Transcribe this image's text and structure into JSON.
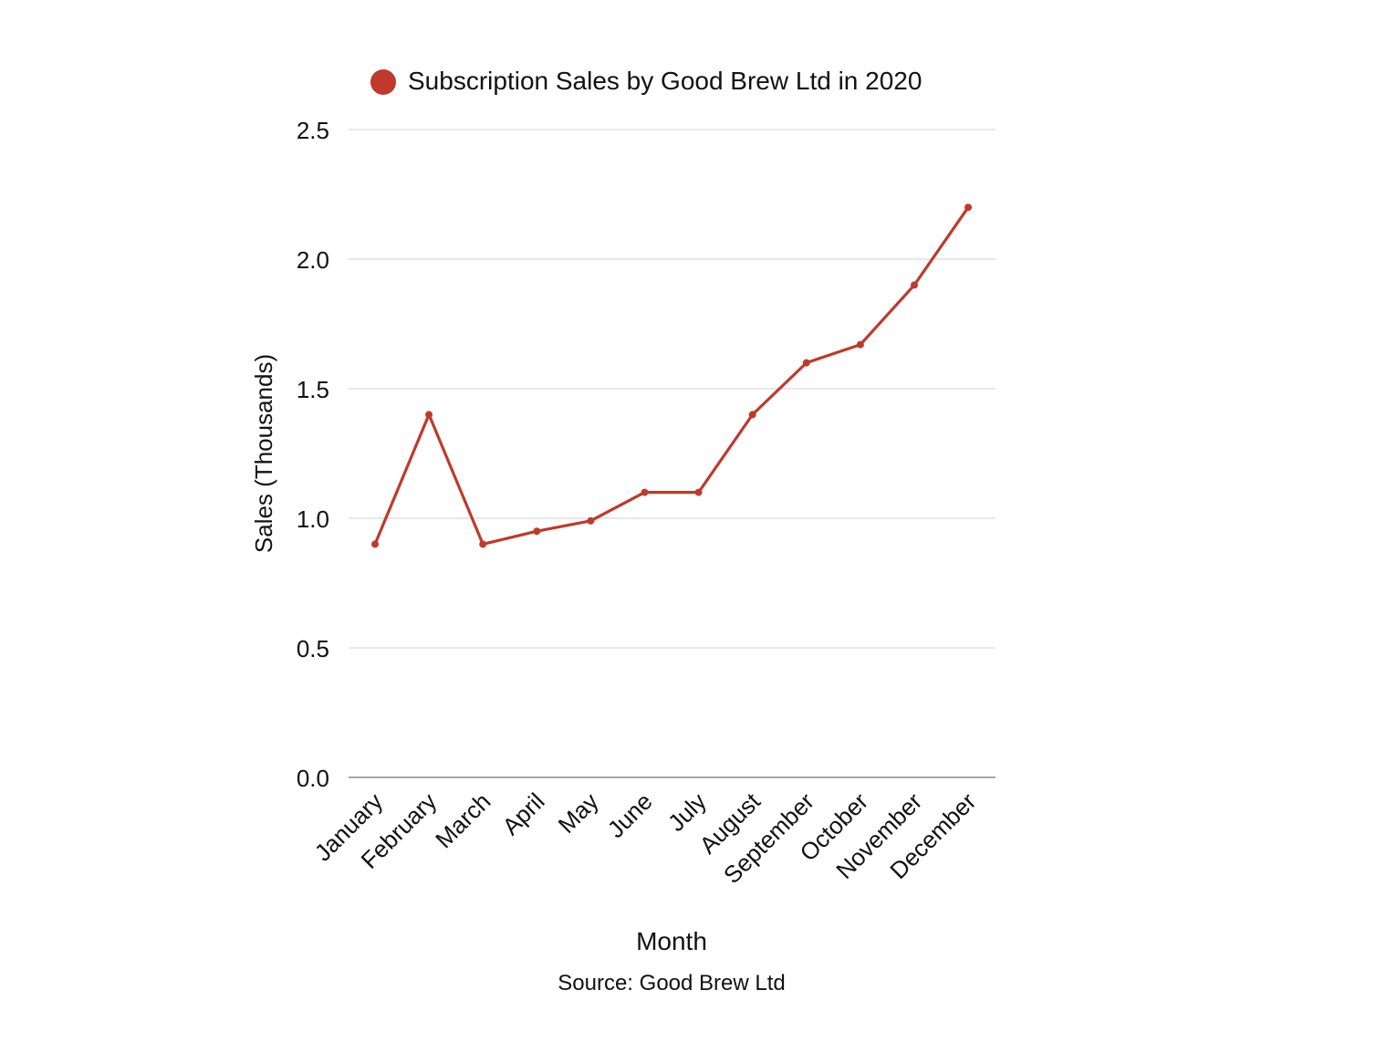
{
  "chart_data": {
    "type": "line",
    "legend": {
      "label": "Subscription Sales by Good Brew Ltd in 2020",
      "position": "top-center"
    },
    "xlabel": "Month",
    "ylabel": "Sales (Thousands)",
    "source": "Source: Good Brew Ltd",
    "ylim": [
      0,
      2.5
    ],
    "yticks": [
      "0.0",
      "0.5",
      "1.0",
      "1.5",
      "2.0",
      "2.5"
    ],
    "grid": true,
    "categories": [
      "January",
      "February",
      "March",
      "April",
      "May",
      "June",
      "July",
      "August",
      "September",
      "October",
      "November",
      "December"
    ],
    "series": [
      {
        "name": "Subscription Sales by Good Brew Ltd in 2020",
        "values": [
          0.9,
          1.4,
          0.9,
          0.95,
          0.99,
          1.1,
          1.1,
          1.4,
          1.6,
          1.67,
          1.9,
          2.2
        ],
        "color": "#c0392b"
      }
    ]
  }
}
